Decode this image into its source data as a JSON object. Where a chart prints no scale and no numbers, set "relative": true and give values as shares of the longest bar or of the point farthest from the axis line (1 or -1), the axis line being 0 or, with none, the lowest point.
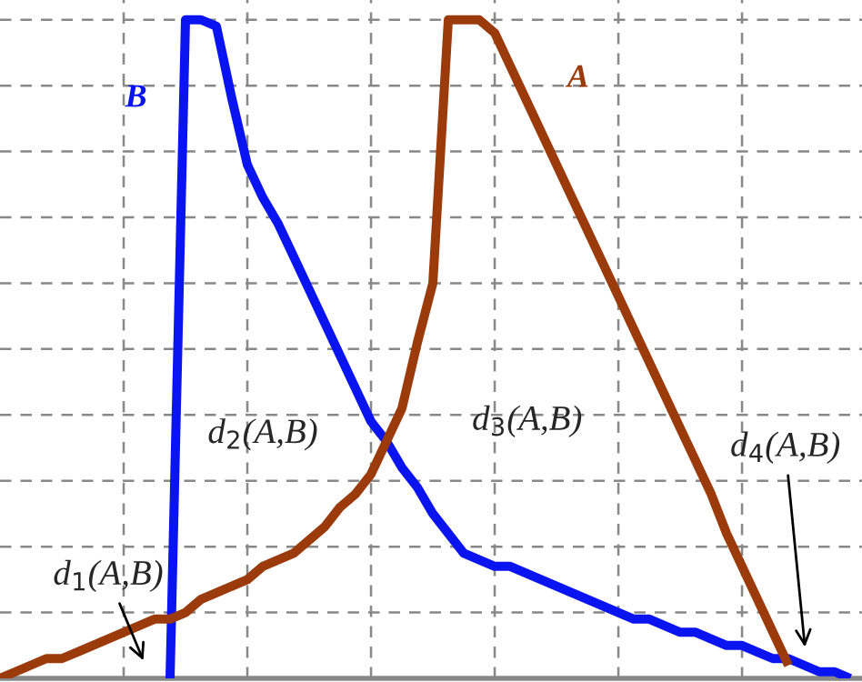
{
  "chart_data": {
    "type": "line",
    "relative": true,
    "grid": true,
    "legend": false,
    "marker": "none",
    "line_style": "solid",
    "categories": [
      null,
      null,
      null,
      null,
      null,
      null,
      null,
      null,
      null,
      null,
      null,
      null,
      null,
      null,
      null,
      null,
      null,
      null,
      null,
      null,
      null,
      null,
      null,
      null,
      null,
      null,
      null,
      null,
      null,
      null,
      null,
      null,
      null,
      null,
      null,
      null,
      null,
      null,
      null,
      null,
      null,
      null,
      null,
      null,
      null,
      null,
      null,
      null,
      null,
      null,
      null,
      null,
      null,
      null,
      null,
      null
    ],
    "series": [
      {
        "name": "B",
        "color": "#0a14f0",
        "values": [
          null,
          null,
          null,
          null,
          null,
          null,
          null,
          null,
          null,
          null,
          null,
          0,
          1,
          1,
          0.99,
          0.88,
          0.78,
          0.73,
          0.69,
          0.64,
          0.59,
          0.54,
          0.49,
          0.44,
          0.39,
          0.36,
          0.32,
          0.29,
          0.25,
          0.22,
          0.19,
          0.18,
          0.17,
          0.17,
          0.16,
          0.15,
          0.14,
          0.13,
          0.12,
          0.11,
          0.1,
          0.09,
          0.09,
          0.08,
          0.07,
          0.07,
          0.06,
          0.05,
          0.05,
          0.04,
          0.03,
          0.03,
          0.02,
          0.01,
          0.01,
          0
        ]
      },
      {
        "name": "A",
        "color": "#9b3a0a",
        "values": [
          0,
          0.01,
          0.02,
          0.03,
          0.03,
          0.04,
          0.05,
          0.06,
          0.07,
          0.08,
          0.09,
          0.09,
          0.1,
          0.12,
          0.13,
          0.14,
          0.15,
          0.17,
          0.18,
          0.19,
          0.21,
          0.23,
          0.26,
          0.28,
          0.31,
          0.36,
          0.41,
          0.51,
          0.6,
          1,
          1,
          1,
          0.98,
          0.93,
          0.88,
          0.83,
          0.78,
          0.73,
          0.68,
          0.63,
          0.58,
          0.53,
          0.48,
          0.43,
          0.38,
          0.33,
          0.28,
          0.22,
          0.17,
          0.12,
          0.07,
          0.02,
          null,
          null,
          null,
          null
        ]
      }
    ],
    "annotations": [
      "d$_{1}$(A,B)",
      "d$_{2}$(A,B)",
      "d$_{3}$(A,B)",
      "d$_{4}$(A,B)"
    ]
  }
}
